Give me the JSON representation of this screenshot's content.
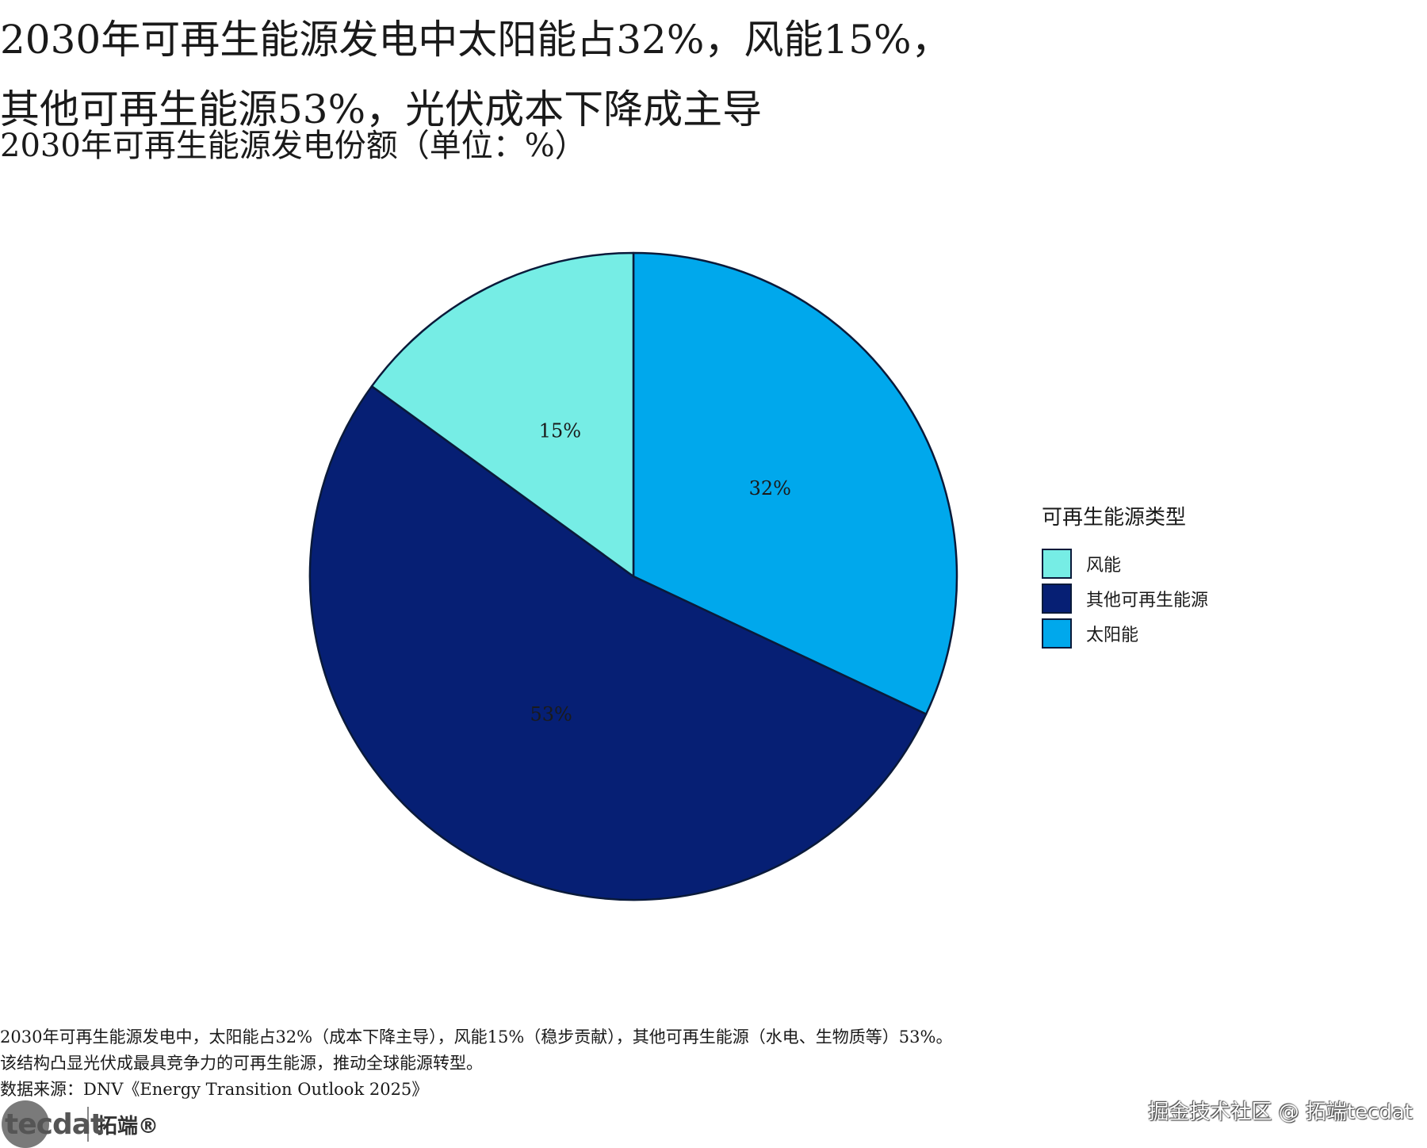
{
  "header": {
    "title_line1": "2030年可再生能源发电中太阳能占32%，风能15%，",
    "title_line2": "其他可再生能源53%，光伏成本下降成主导",
    "subtitle": "2030年可再生能源发电份额（单位：%）"
  },
  "chart_data": {
    "type": "pie",
    "title": "2030年可再生能源发电中太阳能占32%，风能15%，其他可再生能源53%，光伏成本下降成主导",
    "subtitle": "2030年可再生能源发电份额（单位：%）",
    "unit": "%",
    "start_angle": "12 o'clock",
    "direction": "clockwise",
    "slices": [
      {
        "label": "太阳能",
        "value": 32,
        "display": "32%",
        "color": "#00a8ec"
      },
      {
        "label": "其他可再生能源",
        "value": 53,
        "display": "53%",
        "color": "#061f74"
      },
      {
        "label": "风能",
        "value": 15,
        "display": "15%",
        "color": "#76ede5"
      }
    ],
    "legend": {
      "title": "可再生能源类型",
      "placement": "right",
      "items": [
        {
          "label": "风能",
          "color": "#76ede5"
        },
        {
          "label": "其他可再生能源",
          "color": "#061f74"
        },
        {
          "label": "太阳能",
          "color": "#00a8ec"
        }
      ]
    }
  },
  "caption": {
    "line1": "2030年可再生能源发电中，太阳能占32%（成本下降主导），风能15%（稳步贡献），其他可再生能源（水电、生物质等）53%。",
    "line2": "该结构凸显光伏成最具竞争力的可再生能源，推动全球能源转型。",
    "source": "数据来源：DNV《Energy Transition Outlook 2025》"
  },
  "branding": {
    "logo_text": "tecdat",
    "logo_brand": "拓端®",
    "watermark": "掘金技术社区 @ 拓端tecdat"
  }
}
